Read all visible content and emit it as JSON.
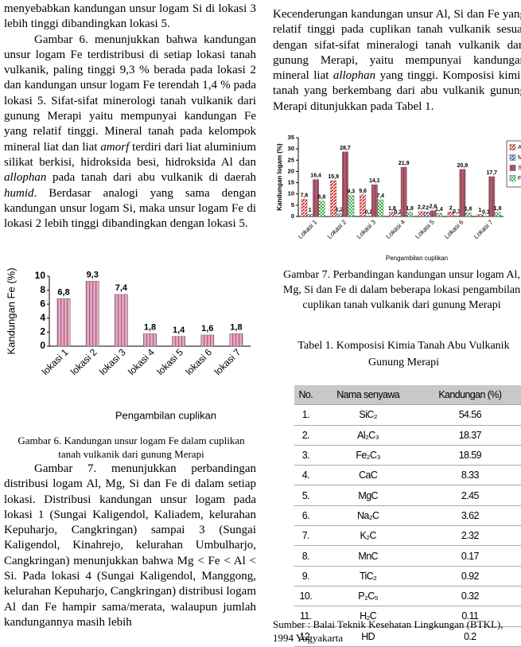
{
  "left_column": {
    "p1": "menyebabkan kandungan unsur logam Si di lokasi 3 lebih tinggi dibandingkan lokasi 5.",
    "p2": [
      "Gambar 6. menunjukkan bahwa kandungan unsur logam Fe terdistribusi di setiap lokasi tanah vulkanik, paling tinggi 9,3 % berada pada lokasi 2 dan kandungan unsur logam Fe terendah 1,4 % pada lokasi 5. Sifat-sifat minerologi tanah vulkanik dari gunung Merapi yaitu mempunyai kandungan Fe yang relatif tinggi. Mineral tanah pada kelompok mineral liat dan liat ",
      "amorf",
      " terdiri dari liat aluminium silikat berkisi, hidroksida besi, hidroksida Al dan ",
      "allophan",
      " pada tanah dari abu vulkanik di daerah ",
      "humid",
      ". Berdasar analogi yang sama dengan kandungan unsur logam Si, maka unsur logam Fe di lokasi 2 lebih tinggi dibandingkan dengan lokasi 5."
    ],
    "caption": "Gambar 6.  Kandungan unsur logam Fe dalam cuplikan tanah vulkanik dari gunung Merapi",
    "p3": "Gambar 7. menunjukkan perbandingan distribusi logam Al, Mg, Si dan Fe di dalam setiap lokasi. Distribusi kandungan unsur logam pada lokasi 1 (Sungai Kaligendol, Kaliadem, kelurahan Kepuharjo, Cangkringan) sampai 3 (Sungai Kaligendol, Kinahrejo, kelurahan Umbulharjo, Cangkringan) menunjukkan bahwa Mg < Fe < Al < Si. Pada lokasi 4 (Sungai Kaligendol, Manggong, kelurahan Kepuharjo, Cangkringan) distribusi logam Al dan Fe hampir sama/merata, walaupun jumlah kandungannya masih lebih"
  },
  "right_column": {
    "p1": [
      "Kecenderungan kandungan unsur Al, Si dan Fe yang relatif tinggi pada cuplikan tanah vulkanik sesuai dengan sifat-sifat mineralogi tanah vulkanik dari gunung Merapi, yaitu mempunyai kandungan mineral liat ",
      "allophan",
      " yang tinggi. Komposisi kimia tanah yang berkembang dari abu vulkanik gunung Merapi ditunjukkan pada Tabel 1."
    ],
    "caption": "Gambar 7.  Perbandingan kandungan unsur logam Al, Mg, Si dan Fe di dalam beberapa lokasi pengambilan  cuplikan tanah vulkanik dari gunung Merapi",
    "table_title": "Tabel 1.   Komposisi Kimia Tanah Abu Vulkanik Gunung Merapi",
    "source": "Sumber : Balai Teknik Kesehatan Lingkungan (BTKL), 1994 Yogyakarta"
  },
  "table": {
    "header": [
      "No.",
      "Nama senyawa",
      "Kandungan (%)"
    ],
    "rows": [
      [
        "1.",
        "SiC₂",
        54.56
      ],
      [
        "2.",
        "Al₂C₃",
        18.37
      ],
      [
        "3.",
        "Fe₂C₃",
        18.59
      ],
      [
        "4.",
        "CaC",
        8.33
      ],
      [
        "5.",
        "MgC",
        2.45
      ],
      [
        "6.",
        "Na₂C",
        3.62
      ],
      [
        "7.",
        "K₂C",
        2.32
      ],
      [
        "8.",
        "MnC",
        0.17
      ],
      [
        "9.",
        "TiC₂",
        0.92
      ],
      [
        "10.",
        "P₂C₅",
        0.32
      ],
      [
        "11.",
        "H₂C",
        0.11
      ],
      [
        "12.",
        "HD",
        0.2
      ]
    ]
  },
  "chart_data": [
    {
      "type": "bar",
      "y_label": "Kandungan Fe (%)",
      "x_label": "Pengambilan cuplikan",
      "categories": [
        "lokasi 1",
        "lokasi 2",
        "lokasi 3",
        "lokasi 4",
        "lokasi 5",
        "lokasi 6",
        "lokasi 7"
      ],
      "values": [
        6.8,
        9.3,
        7.4,
        1.8,
        1.4,
        1.6,
        1.8
      ],
      "value_labels": [
        "6,8",
        "9,3",
        "7,4",
        "1,8",
        "1,4",
        "1,6",
        "1,8"
      ],
      "color": "#e6a8c4",
      "ylim": [
        0,
        10
      ],
      "yticks": [
        0,
        2,
        4,
        6,
        8,
        10
      ]
    },
    {
      "type": "grouped_bar",
      "y_label": "Kandungan logam (%)",
      "x_label": "Pengambilan cuplikan",
      "categories": [
        "Lokasi 1",
        "Lokasi 2",
        "Lokasi 3",
        "Lokasi 4",
        "Lokasi 5",
        "Lokasi 6",
        "Lokasi 7"
      ],
      "series": [
        {
          "name": "Al",
          "color": "#d92020",
          "values": [
            7.6,
            15.9,
            9.6,
            1.8,
            2.2,
            2,
            1
          ],
          "value_labels": [
            "7,6",
            "15,9",
            "9,6",
            "1,8",
            "2,2",
            "2",
            "1"
          ]
        },
        {
          "name": "Mg",
          "color": "#3050a0",
          "values": [
            1,
            1.2,
            0.2,
            0.2,
            2,
            0.3,
            0.1
          ],
          "value_labels": [
            "1",
            "1,2",
            "0,2",
            "0,2",
            "2",
            "0,3",
            "0,1"
          ]
        },
        {
          "name": "Si",
          "color": "#b05a6a",
          "values": [
            16.4,
            28.7,
            14.1,
            21.9,
            2.6,
            20.9,
            17.7
          ],
          "value_labels": [
            "16,4",
            "28,7",
            "14,1",
            "21,9",
            "2,6",
            "20,9",
            "17,7"
          ]
        },
        {
          "name": "Fe",
          "color": "#30b040",
          "values": [
            6.8,
            9.3,
            7.4,
            1.8,
            1.4,
            1.6,
            1.8
          ],
          "value_labels": [
            "6,8",
            "9,3",
            "7,4",
            "1,8",
            "1,4",
            "1,6",
            "1,8"
          ]
        }
      ],
      "ylim": [
        0,
        35
      ],
      "yticks": [
        0,
        5,
        10,
        15,
        20,
        25,
        30,
        35
      ],
      "legend": "right"
    }
  ]
}
